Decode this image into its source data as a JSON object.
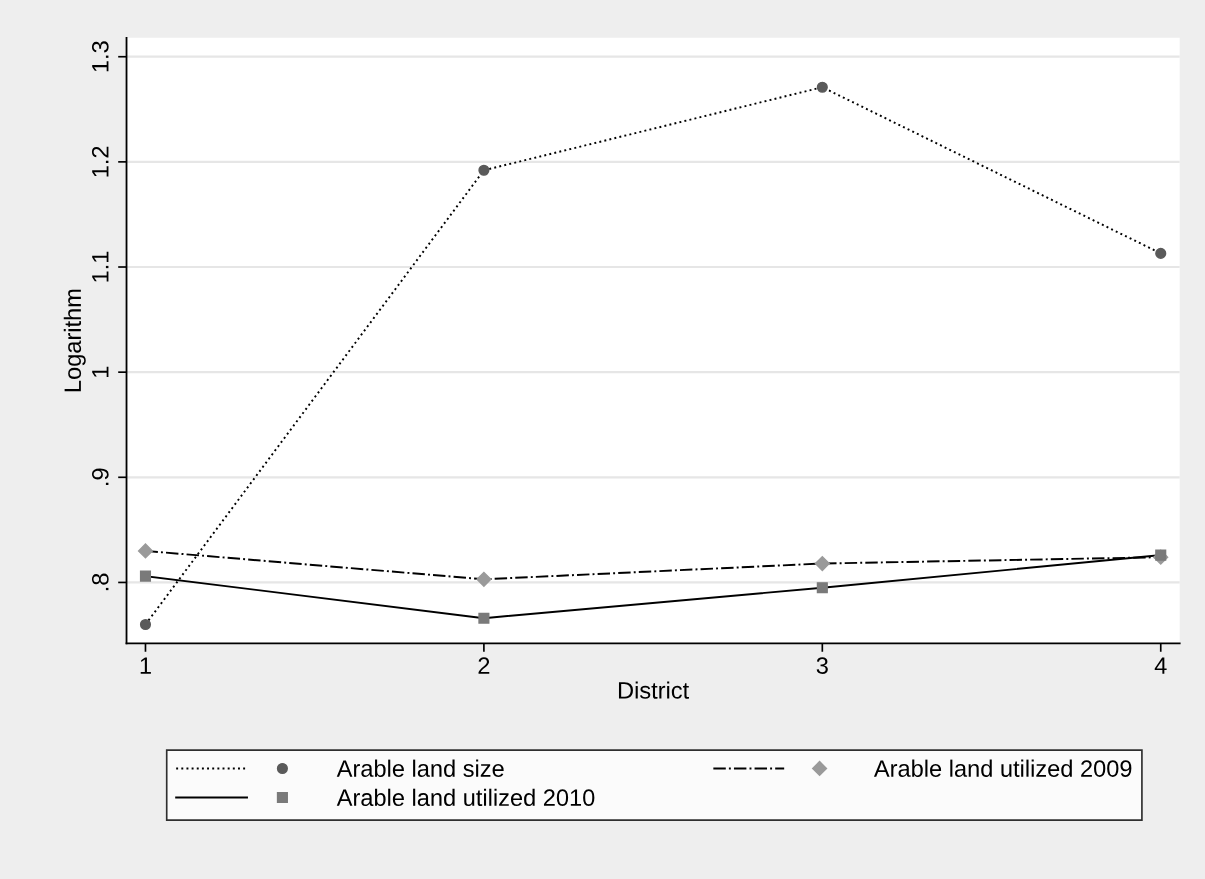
{
  "chart_data": {
    "type": "line",
    "xlabel": "District",
    "ylabel": "Logarithm",
    "x": [
      1,
      2,
      3,
      4
    ],
    "series": [
      {
        "name": "Arable land size",
        "color": "#5a5a5a",
        "marker": "circle",
        "line_style": "dotted",
        "values": [
          0.76,
          1.192,
          1.271,
          1.113
        ]
      },
      {
        "name": "Arable land utilized 2010",
        "color": "#7a7a7a",
        "marker": "square",
        "line_style": "solid",
        "values": [
          0.806,
          0.766,
          0.795,
          0.826
        ]
      },
      {
        "name": "Arable land utilized 2009",
        "color": "#9a9a9a",
        "marker": "diamond",
        "line_style": "dashdot",
        "values": [
          0.83,
          0.803,
          0.818,
          0.824
        ]
      }
    ],
    "xlim": [
      0.944,
      4.056
    ],
    "xticks": [
      1,
      2,
      3,
      4
    ],
    "ylim": [
      0.742,
      1.318
    ],
    "yticks": [
      {
        "value": 0.8,
        "label": ".8"
      },
      {
        "value": 0.9,
        "label": ".9"
      },
      1,
      1.1,
      1.2,
      1.3
    ],
    "grid": "y",
    "legend": "bottom"
  }
}
